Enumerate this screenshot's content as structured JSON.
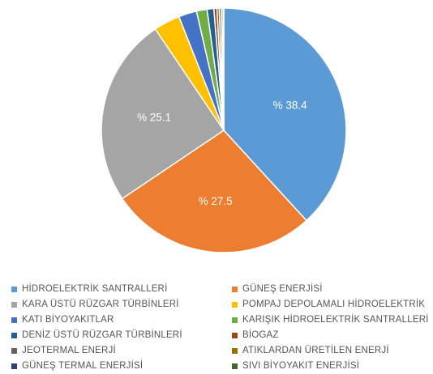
{
  "chart_data": {
    "type": "pie",
    "title": "",
    "start_angle_deg": 0,
    "direction": "clockwise",
    "legend_position": "bottom",
    "slices": [
      {
        "name": "HİDROELEKTRİK SANTRALLERİ",
        "value": 38.4,
        "color": "#5B9BD5",
        "label": "% 38.4"
      },
      {
        "name": "GÜNEŞ ENERJİSİ",
        "value": 27.5,
        "color": "#ED7D31",
        "label": "% 27.5"
      },
      {
        "name": "KARA ÜSTÜ RÜZGAR TÜRBİNLERİ",
        "value": 25.1,
        "color": "#A5A5A5",
        "label": "% 25.1"
      },
      {
        "name": "POMPAJ DEPOLAMALI HİDROELEKTRİK",
        "value": 3.5,
        "color": "#FFC000",
        "label": ""
      },
      {
        "name": "KATI BİYOYAKITLAR",
        "value": 2.4,
        "color": "#4472C4",
        "label": ""
      },
      {
        "name": "KARIŞIK HİDROELEKTRİK SANTRALLERİ",
        "value": 1.4,
        "color": "#70AD47",
        "label": ""
      },
      {
        "name": "DENİZ ÜSTÜ RÜZGAR TÜRBİNLERİ",
        "value": 0.9,
        "color": "#255E91",
        "label": ""
      },
      {
        "name": "BİOGAZ",
        "value": 0.4,
        "color": "#9E480E",
        "label": ""
      },
      {
        "name": "JEOTERMAL ENERJİ",
        "value": 0.3,
        "color": "#636363",
        "label": ""
      },
      {
        "name": "ATIKLARDAN ÜRETİLEN ENERJİ",
        "value": 0.3,
        "color": "#997300",
        "label": ""
      },
      {
        "name": "GÜNEŞ TERMAL ENERJİSİ",
        "value": 0.2,
        "color": "#264478",
        "label": ""
      },
      {
        "name": "SIVI BİYOYAKIT ENERJİSİ",
        "value": 0.1,
        "color": "#43682B",
        "label": ""
      }
    ]
  }
}
